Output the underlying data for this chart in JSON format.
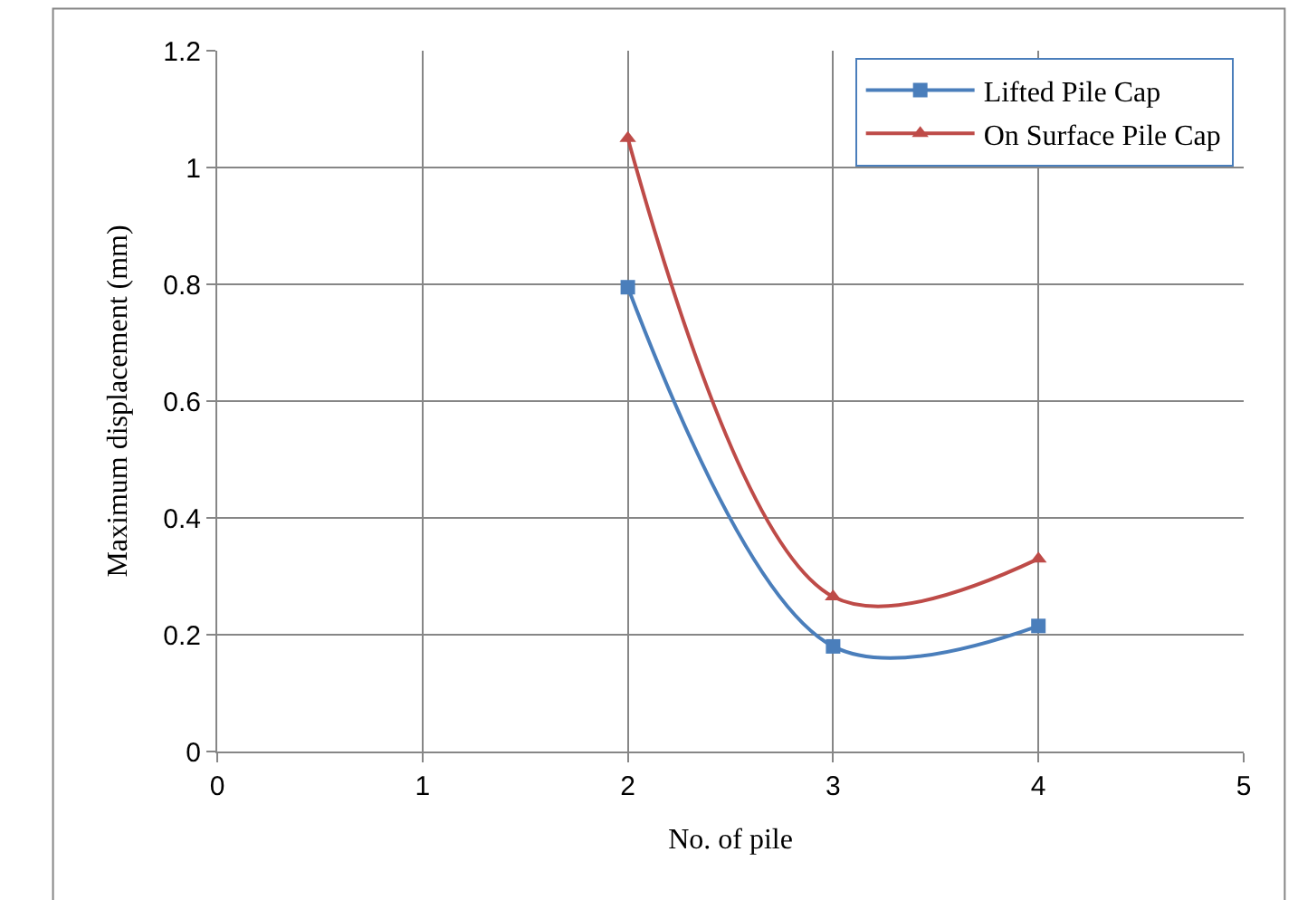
{
  "chart_data": {
    "type": "line",
    "xlabel": "No. of pile",
    "ylabel": "Maximum displacement (mm)",
    "x": [
      2,
      3,
      4
    ],
    "series": [
      {
        "name": "Lifted Pile Cap",
        "color": "#4a7ebb",
        "values": [
          0.795,
          0.18,
          0.215
        ],
        "marker": "square"
      },
      {
        "name": "On Surface Pile Cap",
        "color": "#be4b48",
        "values": [
          1.05,
          0.265,
          0.33
        ],
        "marker": "triangle"
      }
    ],
    "xlim": [
      0,
      5
    ],
    "xticks": [
      0,
      1,
      2,
      3,
      4,
      5
    ],
    "ylim": [
      0,
      1.2
    ],
    "yticks": [
      {
        "value": 0,
        "label": "0"
      },
      {
        "value": 0.2,
        "label": "0.2"
      },
      {
        "value": 0.4,
        "label": "0.4"
      },
      {
        "value": 0.6,
        "label": "0.6"
      },
      {
        "value": 0.8,
        "label": "0.8"
      },
      {
        "value": 1,
        "label": "1"
      },
      {
        "value": 1.2,
        "label": "1.2"
      }
    ],
    "grid": true,
    "legend": "top right",
    "line_style": "solid"
  }
}
